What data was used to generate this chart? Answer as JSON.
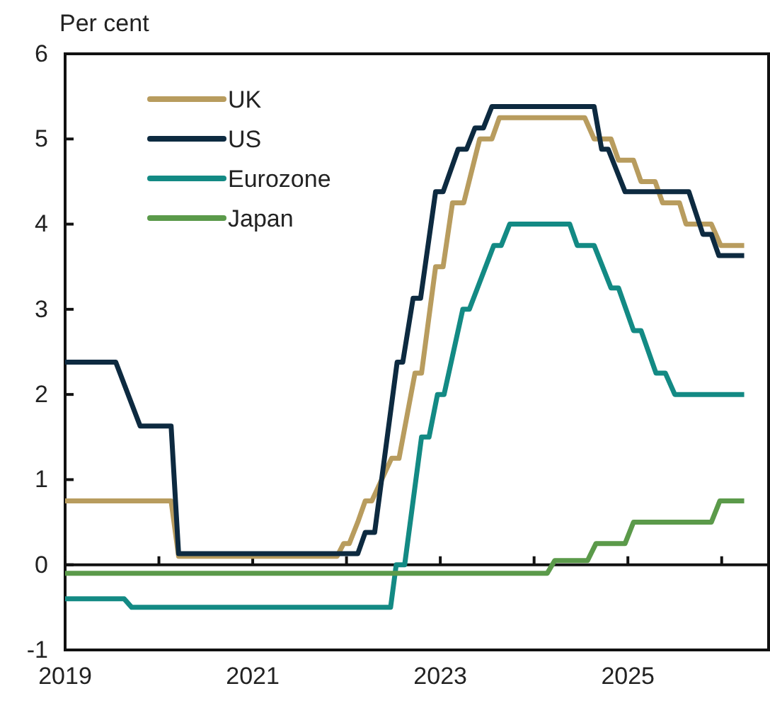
{
  "chart_data": {
    "type": "line",
    "ylabel": "Per cent",
    "xlim": [
      2019,
      2026.5
    ],
    "xticks": [
      2019,
      {
        "value": 2020,
        "label": null
      },
      2021,
      {
        "value": 2022,
        "label": null
      },
      2023,
      {
        "value": 2024,
        "label": null
      },
      2025,
      {
        "value": 2026,
        "label": null
      }
    ],
    "ylim": [
      -1,
      6
    ],
    "yticks": [
      -1,
      0,
      1,
      2,
      3,
      4,
      5,
      6
    ],
    "ref_lines": [
      {
        "axis": "y",
        "value": 0
      }
    ],
    "legend": "top left",
    "line_style": "solid",
    "marker": "none",
    "series": [
      {
        "name": "UK",
        "color": "#b89c5e",
        "x": [
          2019,
          2020.13,
          2020.21,
          2021.9,
          2021.97,
          2022.03,
          2022.12,
          2022.2,
          2022.27,
          2022.48,
          2022.56,
          2022.73,
          2022.8,
          2022.95,
          2023.03,
          2023.13,
          2023.25,
          2023.42,
          2023.55,
          2023.63,
          2024.54,
          2024.64,
          2024.82,
          2024.9,
          2025.06,
          2025.14,
          2025.29,
          2025.37,
          2025.55,
          2025.62,
          2025.89,
          2025.99,
          2026.24
        ],
        "values": [
          0.75,
          0.75,
          0.1,
          0.1,
          0.25,
          0.25,
          0.5,
          0.75,
          0.75,
          1.25,
          1.25,
          2.25,
          2.25,
          3.5,
          3.5,
          4.25,
          4.25,
          5,
          5,
          5.25,
          5.25,
          5,
          5,
          4.75,
          4.75,
          4.5,
          4.5,
          4.25,
          4.25,
          4,
          4,
          3.75,
          3.75
        ]
      },
      {
        "name": "US",
        "color": "#0d2a40",
        "x": [
          2019,
          2019.54,
          2019.8,
          2020.13,
          2020.21,
          2022.12,
          2022.2,
          2022.3,
          2022.54,
          2022.6,
          2022.71,
          2022.79,
          2022.95,
          2023.03,
          2023.19,
          2023.28,
          2023.37,
          2023.46,
          2023.55,
          2024.64,
          2024.72,
          2024.79,
          2024.97,
          2025.65,
          2025.8,
          2025.89,
          2025.97,
          2026.24
        ],
        "values": [
          2.38,
          2.38,
          1.63,
          1.63,
          0.13,
          0.13,
          0.38,
          0.38,
          2.38,
          2.38,
          3.13,
          3.13,
          4.38,
          4.38,
          4.88,
          4.88,
          5.13,
          5.13,
          5.38,
          5.38,
          4.88,
          4.88,
          4.38,
          4.38,
          3.88,
          3.88,
          3.63,
          3.63
        ]
      },
      {
        "name": "Eurozone",
        "color": "#138a84",
        "x": [
          2019,
          2019.63,
          2019.71,
          2022.47,
          2022.53,
          2022.62,
          2022.8,
          2022.88,
          2022.97,
          2023.04,
          2023.24,
          2023.31,
          2023.57,
          2023.65,
          2023.74,
          2024.38,
          2024.46,
          2024.64,
          2024.82,
          2024.9,
          2025.06,
          2025.14,
          2025.3,
          2025.4,
          2025.5,
          2026.24
        ],
        "values": [
          -0.4,
          -0.4,
          -0.5,
          -0.5,
          0,
          0,
          1.5,
          1.5,
          2,
          2,
          3,
          3,
          3.75,
          3.75,
          4,
          4,
          3.75,
          3.75,
          3.25,
          3.25,
          2.75,
          2.75,
          2.25,
          2.25,
          2,
          2
        ]
      },
      {
        "name": "Japan",
        "color": "#5b9a4a",
        "x": [
          2019,
          2024.14,
          2024.22,
          2024.57,
          2024.66,
          2024.97,
          2025.06,
          2025.89,
          2025.98,
          2026.24
        ],
        "values": [
          -0.1,
          -0.1,
          0.05,
          0.05,
          0.25,
          0.25,
          0.5,
          0.5,
          0.75,
          0.75
        ]
      }
    ]
  }
}
